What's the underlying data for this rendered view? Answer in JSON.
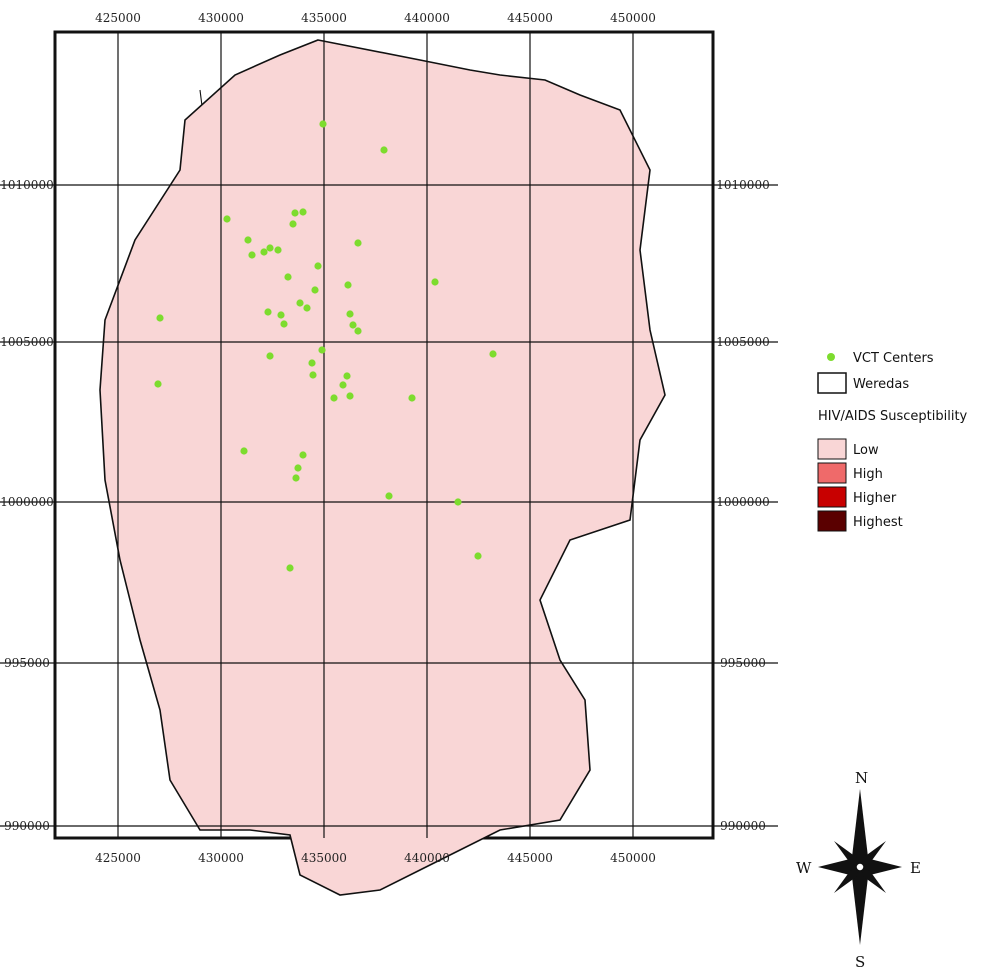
{
  "grid": {
    "x_ticks": [
      "425000",
      "430000",
      "435000",
      "440000",
      "445000",
      "450000"
    ],
    "y_ticks": [
      "1010000",
      "1005000",
      "1000000",
      "995000",
      "990000"
    ]
  },
  "legend": {
    "vct_label": "VCT Centers",
    "weredas_label": "Weredas",
    "title": "HIV/AIDS Susceptibility",
    "classes": [
      {
        "label": "Low",
        "color": "#f9d6d6"
      },
      {
        "label": "High",
        "color": "#ef6a6a"
      },
      {
        "label": "Higher",
        "color": "#c80000"
      },
      {
        "label": "Highest",
        "color": "#5a0000"
      }
    ],
    "vct_color": "#7ddc2e"
  },
  "compass": {
    "n": "N",
    "s": "S",
    "e": "E",
    "w": "W"
  }
}
